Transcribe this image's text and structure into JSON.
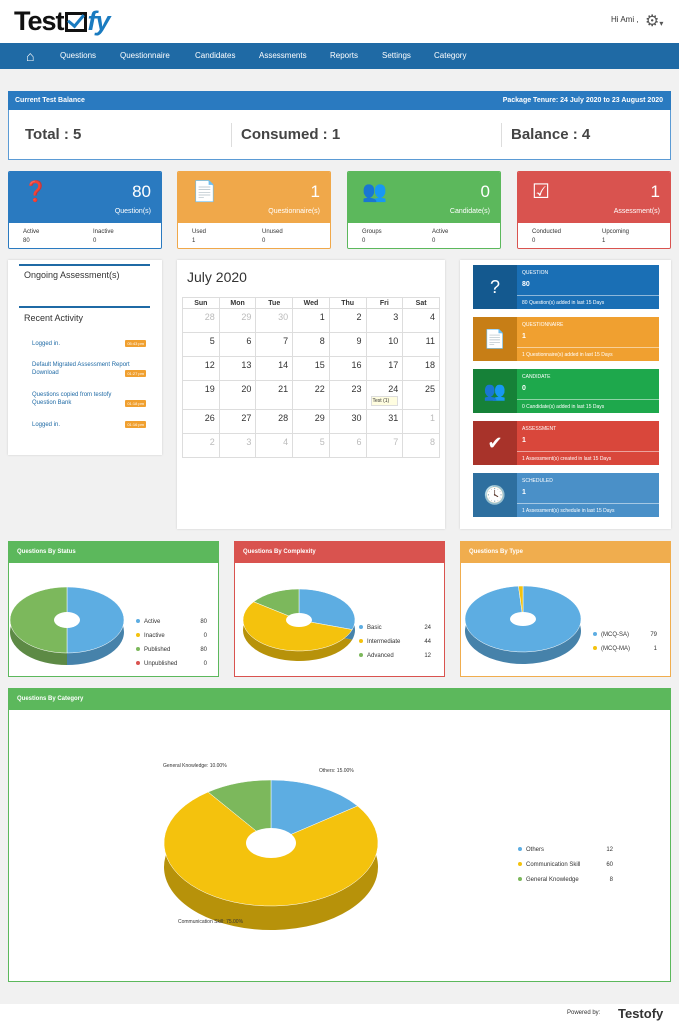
{
  "header": {
    "logo_prefix": "Test",
    "logo_suffix": "fy",
    "greeting": "Hi Ami ,",
    "settings_caret": "▾"
  },
  "nav": {
    "items": [
      "Questions",
      "Questionnaire",
      "Candidates",
      "Assessments",
      "Reports",
      "Settings",
      "Category"
    ]
  },
  "balance": {
    "title": "Current Test Balance",
    "tenure": "Package Tenure: 24 July 2020 to 23 August 2020",
    "total": "Total : 5",
    "consumed": "Consumed : 1",
    "balance": "Balance : 4"
  },
  "cards": [
    {
      "value": "80",
      "label": "Question(s)",
      "color": "#2a7ac0",
      "b1_label": "Active",
      "b1_value": "80",
      "b2_label": "Inactive",
      "b2_value": "0"
    },
    {
      "value": "1",
      "label": "Questionnaire(s)",
      "color": "#f0a84a",
      "b1_label": "Used",
      "b1_value": "1",
      "b2_label": "Unused",
      "b2_value": "0"
    },
    {
      "value": "0",
      "label": "Candidate(s)",
      "color": "#5cb85c",
      "b1_label": "Groups",
      "b1_value": "0",
      "b2_label": "Active",
      "b2_value": "0"
    },
    {
      "value": "1",
      "label": "Assessment(s)",
      "color": "#d9534f",
      "b1_label": "Conducted",
      "b1_value": "0",
      "b2_label": "Upcoming",
      "b2_value": "1"
    }
  ],
  "ongoing": {
    "title": "Ongoing Assessment(s)"
  },
  "recent": {
    "title": "Recent Activity",
    "items": [
      {
        "text": "Logged in.",
        "time": "05:43 pm"
      },
      {
        "text": "Default Migrated Assessment Report Download",
        "time": "01:27 pm"
      },
      {
        "text": "Questions copied from testofy Question Bank",
        "time": "01:18 pm"
      },
      {
        "text": "Logged in.",
        "time": "01:16 pm"
      }
    ]
  },
  "calendar": {
    "month": "July 2020",
    "days": [
      "Sun",
      "Mon",
      "Tue",
      "Wed",
      "Thu",
      "Fri",
      "Sat"
    ],
    "weeks": [
      [
        "28",
        "29",
        "30",
        "1",
        "2",
        "3",
        "4"
      ],
      [
        "5",
        "6",
        "7",
        "8",
        "9",
        "10",
        "11"
      ],
      [
        "12",
        "13",
        "14",
        "15",
        "16",
        "17",
        "18"
      ],
      [
        "19",
        "20",
        "21",
        "22",
        "23",
        "24",
        "25"
      ],
      [
        "26",
        "27",
        "28",
        "29",
        "30",
        "31",
        "1"
      ],
      [
        "2",
        "3",
        "4",
        "5",
        "6",
        "7",
        "8"
      ]
    ],
    "event": "Test (1)"
  },
  "stats": [
    {
      "title": "QUESTION",
      "value": "80",
      "desc": "80 Question(s) added in last 15 Days",
      "color": "#1a6fb5",
      "dark": "#14598f"
    },
    {
      "title": "QUESTIONNAIRE",
      "value": "1",
      "desc": "1 Questionnaire(s) added in last 15 Days",
      "color": "#f0a030",
      "dark": "#c77e16"
    },
    {
      "title": "CANDIDATE",
      "value": "0",
      "desc": "0 Candidate(s) added in last 15 Days",
      "color": "#1ea84c",
      "dark": "#168138"
    },
    {
      "title": "ASSESSMENT",
      "value": "1",
      "desc": "1 Assessment(s) created in last 15 Days",
      "color": "#d9473b",
      "dark": "#a8332a"
    },
    {
      "title": "SCHEDULED",
      "value": "1",
      "desc": "1 Assessment(s) schedule in last 15 Days",
      "color": "#4a90c8",
      "dark": "#2e6f9f"
    }
  ],
  "chart_data": [
    {
      "type": "pie",
      "title": "Questions By Status",
      "header_color": "#5cb85c",
      "categories": [
        "Active",
        "Inactive",
        "Published",
        "Unpublished"
      ],
      "values": [
        80,
        0,
        80,
        0
      ],
      "colors": [
        "#5dade2",
        "#f4c20d",
        "#7cb85c",
        "#d9534f"
      ]
    },
    {
      "type": "pie",
      "title": "Questions By Complexity",
      "header_color": "#d9534f",
      "categories": [
        "Basic",
        "Intermediate",
        "Advanced"
      ],
      "values": [
        24,
        44,
        12
      ],
      "colors": [
        "#5dade2",
        "#f4c20d",
        "#7cb85c"
      ]
    },
    {
      "type": "pie",
      "title": "Questions By Type",
      "header_color": "#f0ad4e",
      "categories": [
        "(MCQ-SA)",
        "(MCQ-MA)"
      ],
      "values": [
        79,
        1
      ],
      "colors": [
        "#5dade2",
        "#f4c20d"
      ]
    },
    {
      "type": "pie",
      "title": "Questions By Category",
      "header_color": "#5cb85c",
      "categories": [
        "Others",
        "Communication Skill",
        "General Knowledge"
      ],
      "values": [
        12,
        60,
        8
      ],
      "colors": [
        "#5dade2",
        "#f4c20d",
        "#7cb85c"
      ],
      "slice_labels": [
        "Others: 15.00%",
        "Communication Skill: 75.00%",
        "General Knowledge: 10.00%"
      ]
    }
  ],
  "footer": {
    "powered": "Powered by:",
    "brand": "Testofy"
  }
}
